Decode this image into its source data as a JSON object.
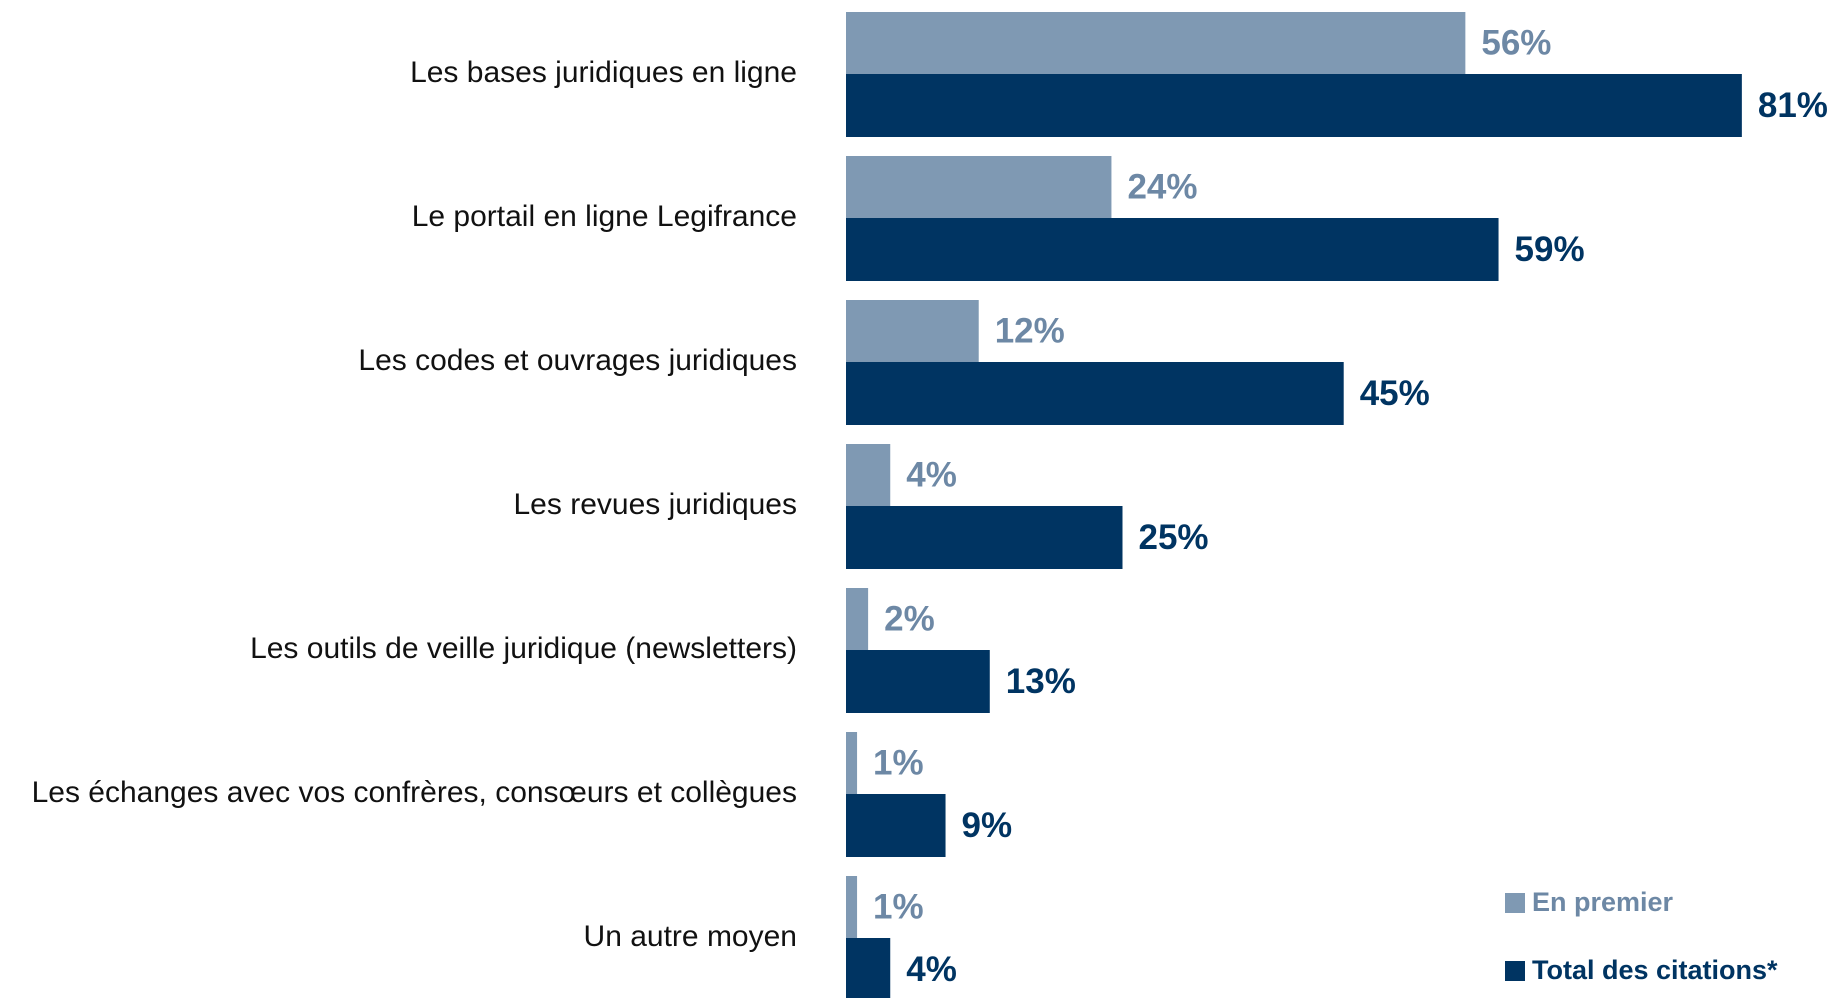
{
  "chart_data": {
    "type": "bar",
    "orientation": "horizontal",
    "categories": [
      "Les bases juridiques en ligne",
      "Le portail en ligne Legifrance",
      "Les codes et ouvrages juridiques",
      "Les revues juridiques",
      "Les outils de veille juridique (newsletters)",
      "Les échanges avec vos confrères, consœurs et collègues",
      "Un autre moyen"
    ],
    "series": [
      {
        "name": "En premier",
        "color": "#7f99b3",
        "label_color": "#6d88a5",
        "values": [
          56,
          24,
          12,
          4,
          2,
          1,
          1
        ],
        "value_labels": [
          "56%",
          "24%",
          "12%",
          "4%",
          "2%",
          "1%",
          "1%"
        ]
      },
      {
        "name": "Total des citations*",
        "color": "#003462",
        "label_color": "#003462",
        "values": [
          81,
          59,
          45,
          25,
          13,
          9,
          4
        ],
        "value_labels": [
          "81%",
          "59%",
          "45%",
          "25%",
          "13%",
          "9%",
          "4%"
        ]
      }
    ],
    "legend": "bottom-right"
  }
}
